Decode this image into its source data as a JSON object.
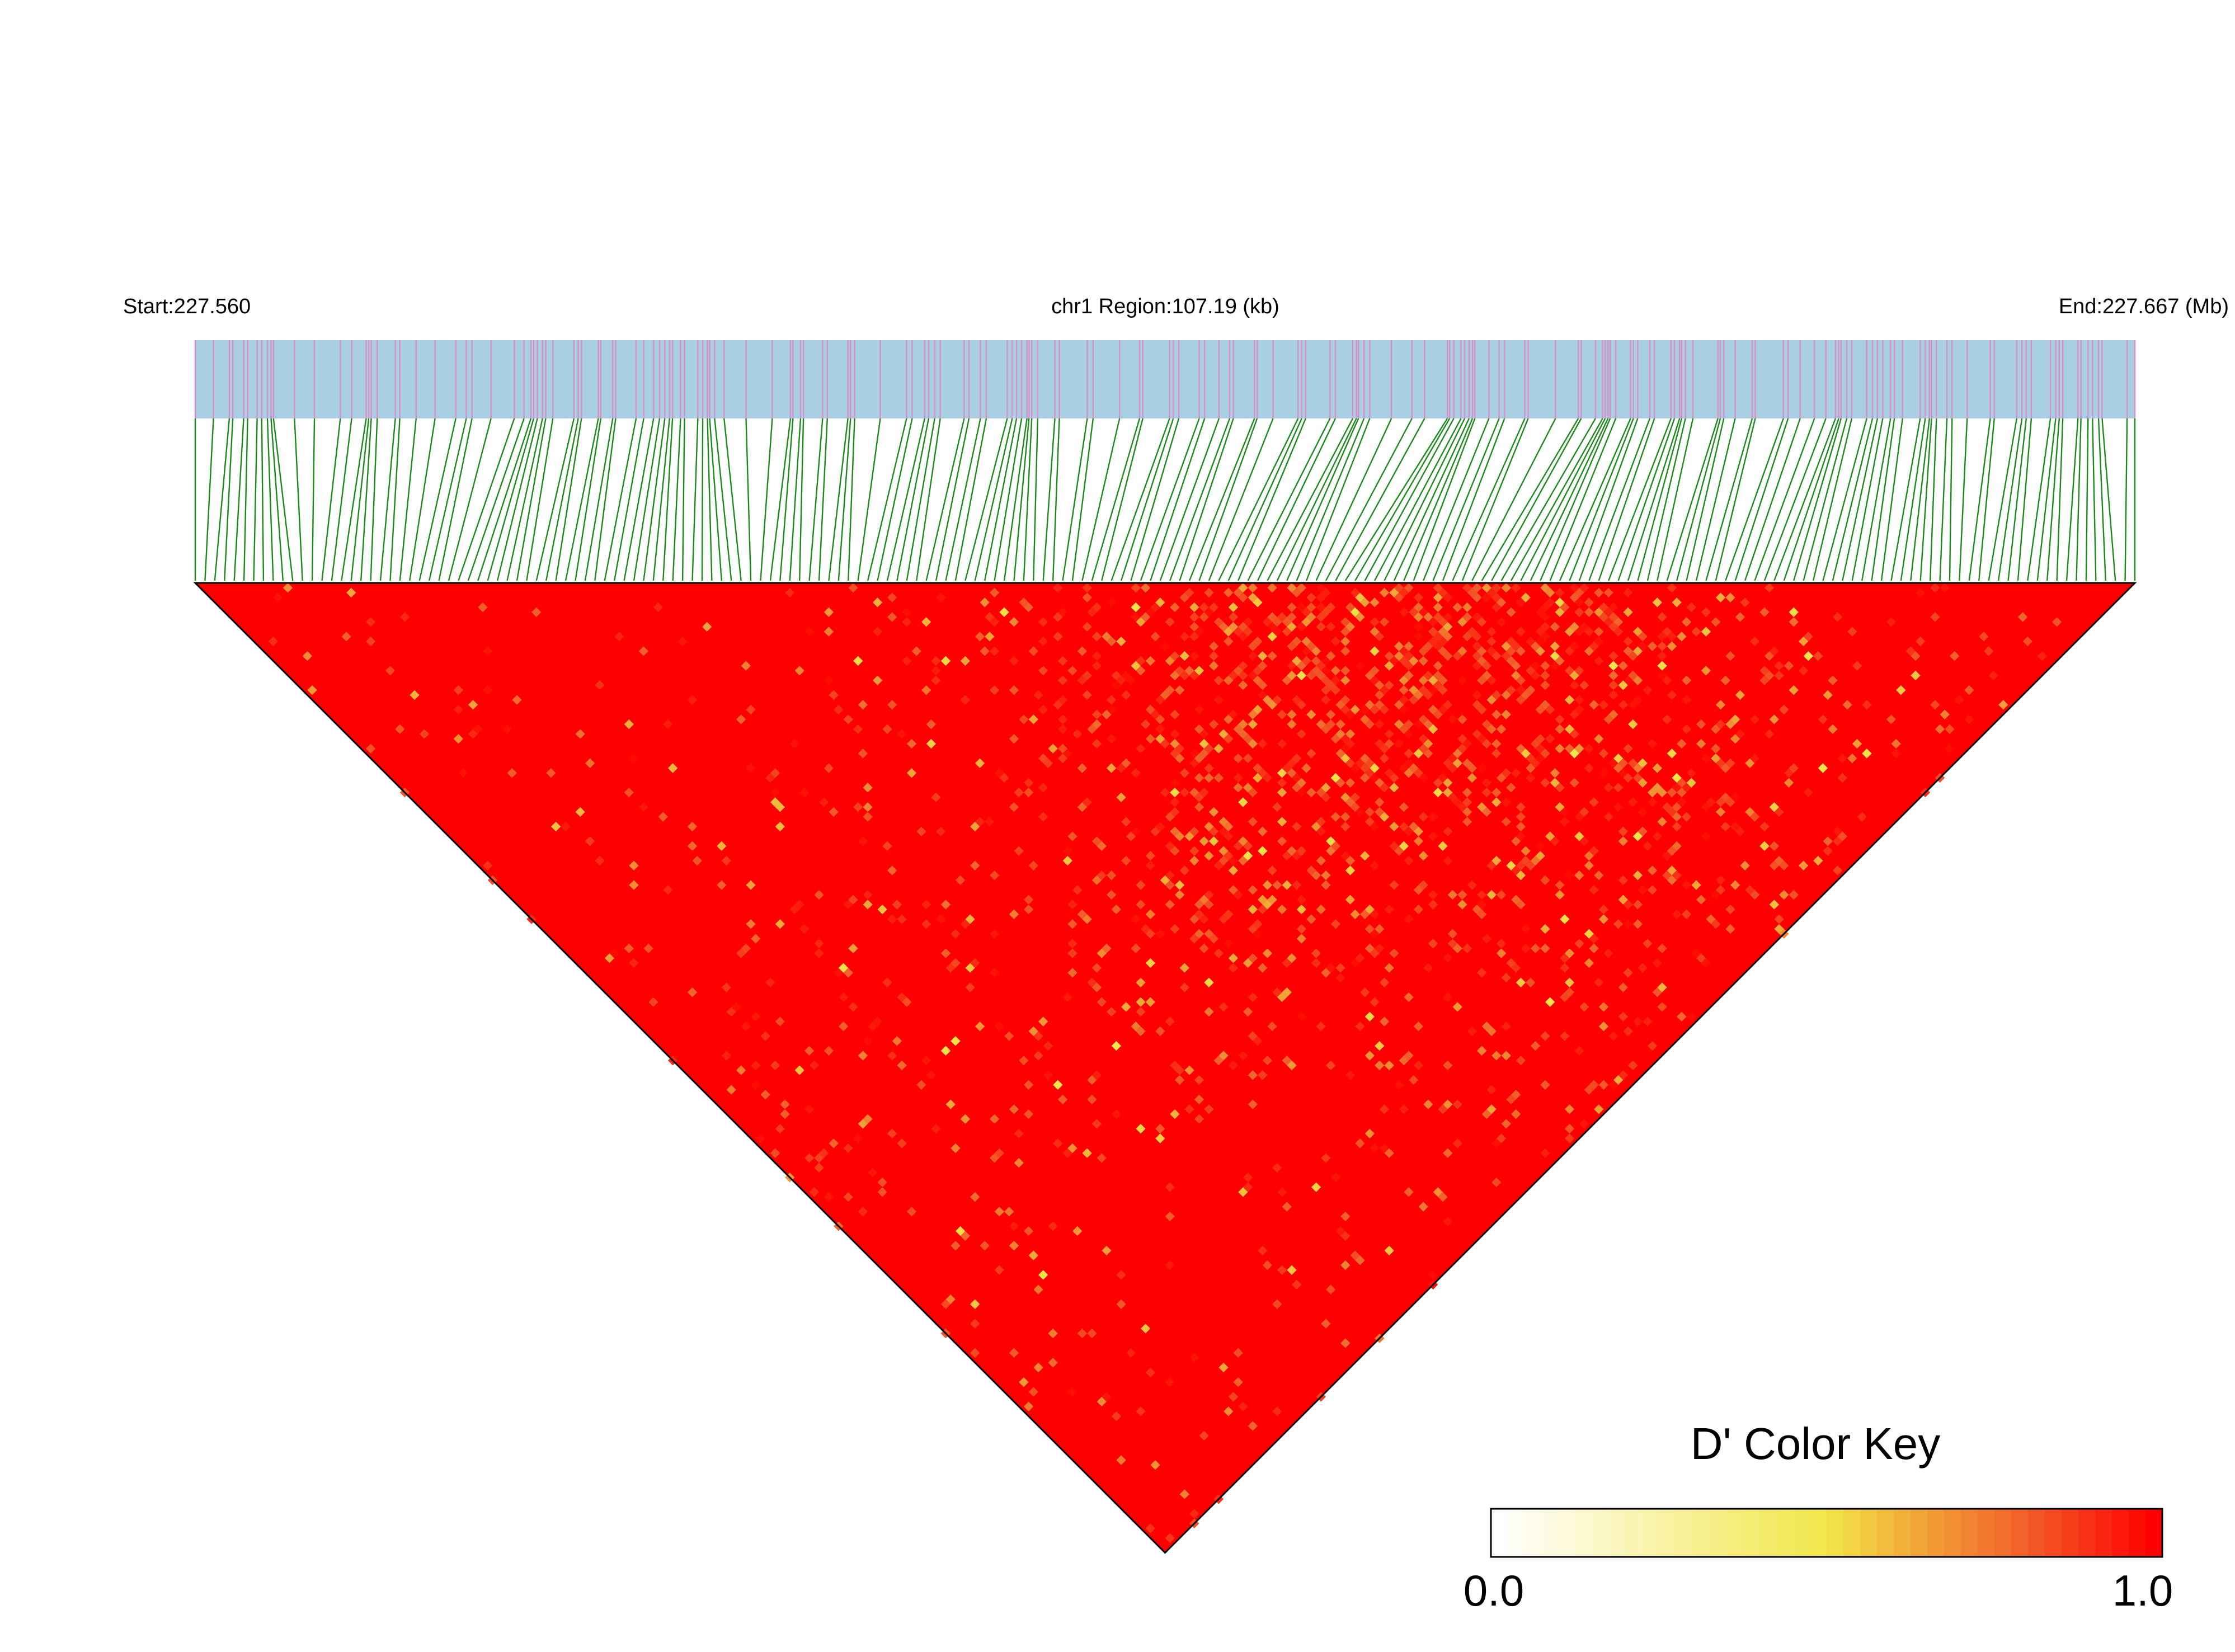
{
  "header": {
    "start_label": "Start:227.560",
    "region_label": "chr1 Region:107.19 (kb)",
    "end_label": "End:227.667 (Mb)"
  },
  "colors": {
    "track_background": "#a8cfe3",
    "snp_marker": "#d98fc6",
    "connector_line": "#1a8a1a",
    "heatmap_high": "#ff0000",
    "heatmap_mid": "#f2e64a",
    "heatmap_low": "#ffffff",
    "outline": "#000000"
  },
  "chart_data": {
    "type": "heatmap",
    "title": "",
    "description_type": "LD heatmap (pairwise D' between SNPs)",
    "region": {
      "chromosome": "chr1",
      "start_mb": 227.56,
      "end_mb": 227.667,
      "length_kb": 107.19
    },
    "snp_count": 200,
    "metric": "D'",
    "value_range": [
      0.0,
      1.0
    ],
    "dominant_value": 1.0,
    "typical_range_observed": [
      0.5,
      1.0
    ],
    "color_key": {
      "title": "D' Color Key",
      "min_label": "0.0",
      "max_label": "1.0",
      "stops": [
        {
          "value": 0.0,
          "color": "#ffffff"
        },
        {
          "value": 0.5,
          "color": "#f2e64a"
        },
        {
          "value": 0.6,
          "color": "#f2b83c"
        },
        {
          "value": 0.8,
          "color": "#f2602a"
        },
        {
          "value": 1.0,
          "color": "#ff0000"
        }
      ]
    },
    "legend_position": "bottom-right",
    "grid": false
  }
}
